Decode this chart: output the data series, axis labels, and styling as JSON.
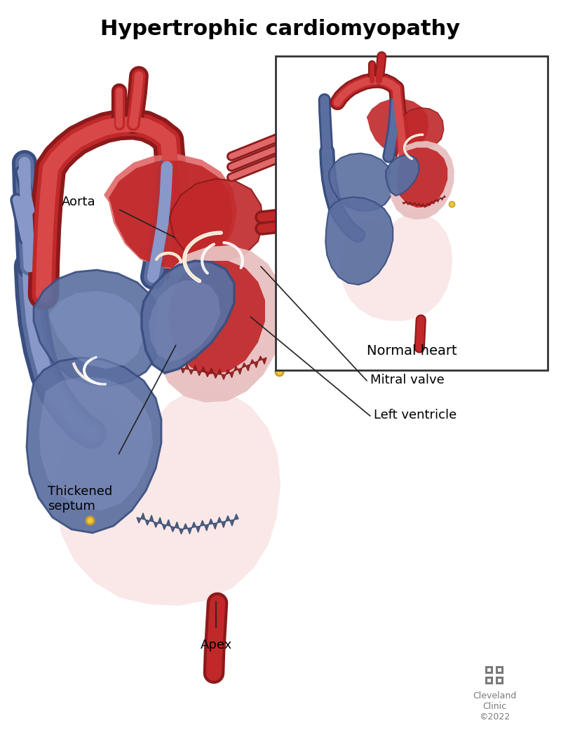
{
  "title": "Hypertrophic cardiomyopathy",
  "title_fontsize": 22,
  "title_fontweight": "bold",
  "bg_color": "#ffffff",
  "labels": {
    "aorta": "Aorta",
    "mitral_valve": "Mitral valve",
    "left_ventricle": "Left ventricle",
    "thickened_septum": "Thickened\nseptum",
    "apex": "Apex",
    "normal_heart": "Normal heart"
  },
  "label_fontsize": 13,
  "line_color": "#222222",
  "cleveland_clinic_color": "#7a7a7a",
  "inset_box_color": "#333333",
  "heart_red": "#c0282a",
  "heart_red_light": "#d84848",
  "heart_red_dark": "#8b1a1a",
  "heart_red_medium": "#b03030",
  "heart_blue": "#5a6fa0",
  "heart_blue_dark": "#3a4f80",
  "heart_blue_light": "#8898c8",
  "heart_blue_pale": "#a8b8d8",
  "heart_pink": "#e8c0c0",
  "heart_pink_light": "#f2d8d8",
  "heart_pink_pale": "#fae8e8",
  "aorta_red_outer": "#c03030",
  "aorta_red_inner": "#d85050",
  "cream": "#f5e8d0",
  "tan": "#d4a870",
  "gold": "#c8a020",
  "gold_light": "#f0c840"
}
